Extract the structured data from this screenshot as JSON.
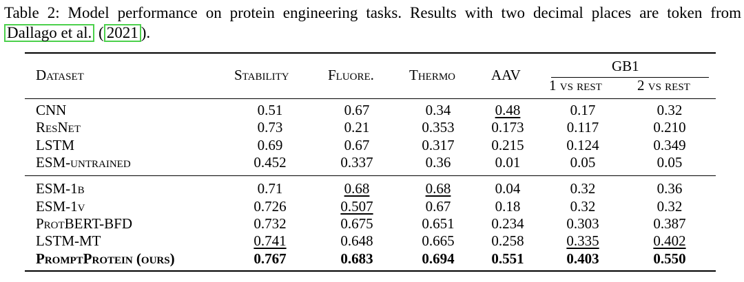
{
  "caption": {
    "pre": "Table 2: Model performance on protein engineering tasks. Results with two decimal places are token from ",
    "cite_author": "Dallago et al.",
    "cite_year": "2021",
    "paren_open": " (",
    "paren_close": ")."
  },
  "header": {
    "dataset": "Dataset",
    "stability": "Stability",
    "fluore": "Fluore.",
    "thermo": "Thermo",
    "aav": "AAV",
    "gb1": "GB1",
    "gb1_1": "1 vs rest",
    "gb1_2": "2 vs rest"
  },
  "rows": [
    {
      "name": "CNN",
      "v": [
        "0.51",
        "0.67",
        "0.34",
        "0.48",
        "0.17",
        "0.32"
      ]
    },
    {
      "name": "ResNet",
      "v": [
        "0.73",
        "0.21",
        "0.353",
        "0.173",
        "0.117",
        "0.210"
      ]
    },
    {
      "name": "LSTM",
      "v": [
        "0.69",
        "0.67",
        "0.317",
        "0.215",
        "0.124",
        "0.349"
      ]
    },
    {
      "name": "ESM-untrained",
      "v": [
        "0.452",
        "0.337",
        "0.36",
        "0.01",
        "0.05",
        "0.05"
      ]
    },
    {
      "name": "ESM-1b",
      "v": [
        "0.71",
        "0.68",
        "0.68",
        "0.04",
        "0.32",
        "0.36"
      ]
    },
    {
      "name": "ESM-1v",
      "v": [
        "0.726",
        "0.507",
        "0.67",
        "0.18",
        "0.32",
        "0.32"
      ]
    },
    {
      "name": "ProtBERT-BFD",
      "v": [
        "0.732",
        "0.675",
        "0.651",
        "0.234",
        "0.303",
        "0.387"
      ]
    },
    {
      "name": "LSTM-MT",
      "v": [
        "0.741",
        "0.648",
        "0.665",
        "0.258",
        "0.335",
        "0.402"
      ]
    },
    {
      "name": "PromptProtein (ours)",
      "v": [
        "0.767",
        "0.683",
        "0.694",
        "0.551",
        "0.403",
        "0.550"
      ]
    }
  ]
}
